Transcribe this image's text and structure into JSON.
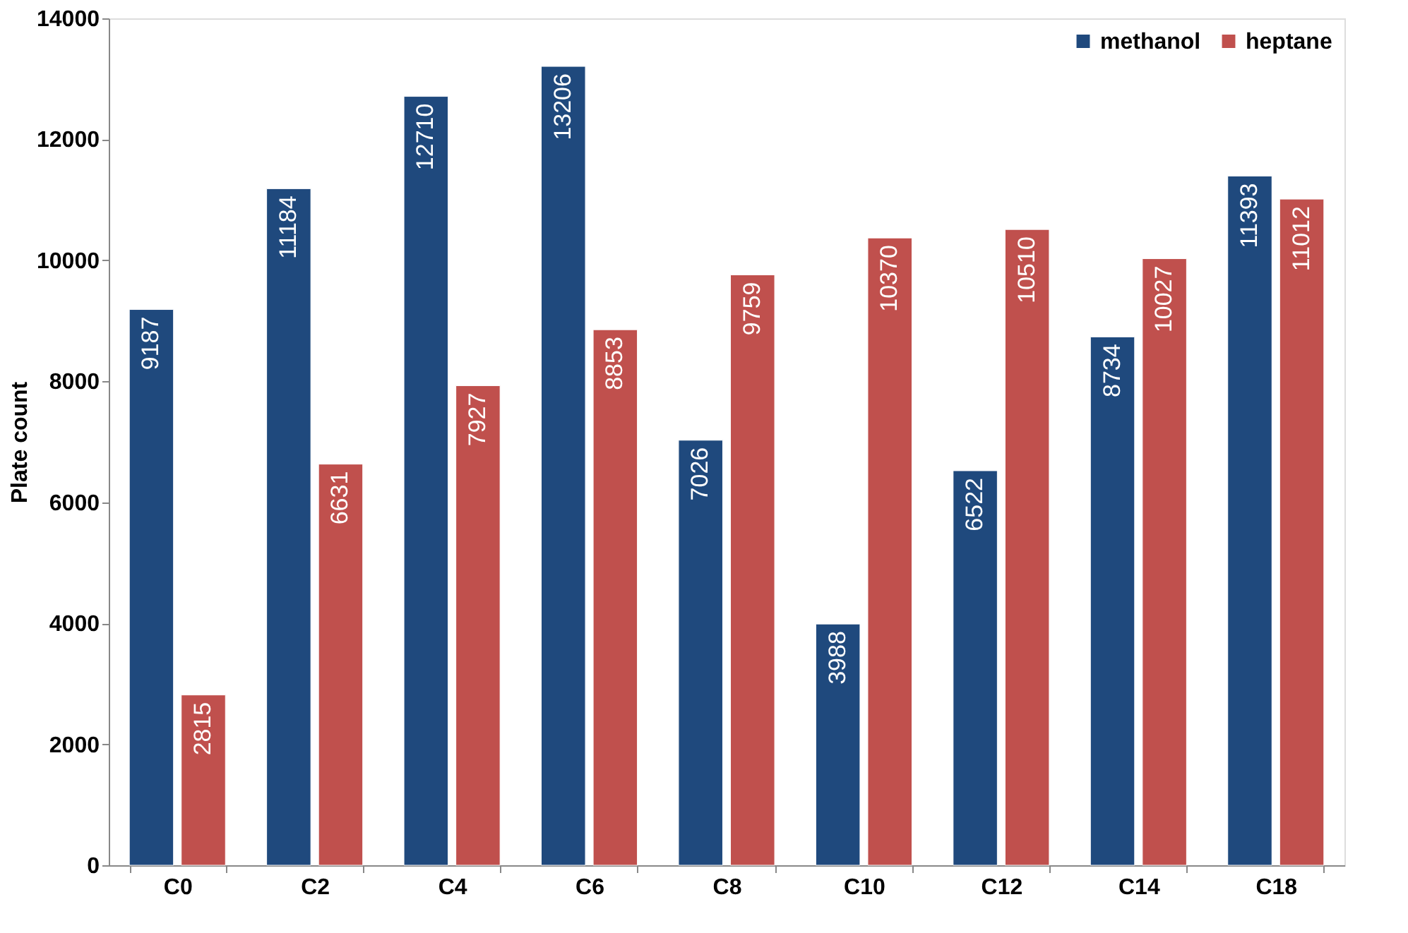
{
  "chart_data": {
    "type": "bar",
    "ylabel": "Plate count",
    "categories": [
      "C0",
      "C2",
      "C4",
      "C6",
      "C8",
      "C10",
      "C12",
      "C14",
      "C18"
    ],
    "series": [
      {
        "name": "methanol",
        "color": "#1f497d",
        "values": [
          9187,
          11184,
          12710,
          13206,
          7026,
          3988,
          6522,
          8734,
          11393
        ]
      },
      {
        "name": "heptane",
        "color": "#c0504d",
        "values": [
          2815,
          6631,
          7927,
          8853,
          9759,
          10370,
          10510,
          10027,
          11012
        ]
      }
    ],
    "ylim": [
      0,
      14000
    ],
    "yticks": [
      0,
      2000,
      4000,
      6000,
      8000,
      10000,
      12000,
      14000
    ],
    "grid": false,
    "legend": "top right",
    "data_labels": true
  }
}
